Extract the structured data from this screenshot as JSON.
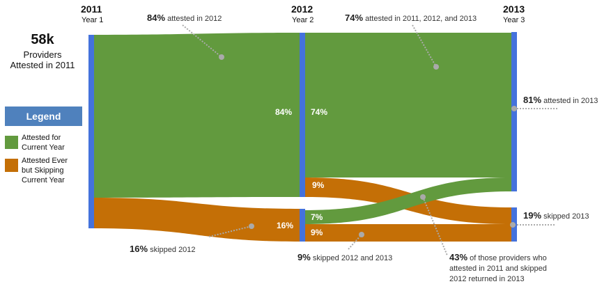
{
  "colors": {
    "attested": "#629a3e",
    "skipping": "#c46f06",
    "node": "#4472dc",
    "legend_header": "#4f81bd"
  },
  "years": [
    {
      "year": "2011",
      "label": "Year 1"
    },
    {
      "year": "2012",
      "label": "Year 2"
    },
    {
      "year": "2013",
      "label": "Year 3"
    }
  ],
  "summary": {
    "count": "58k",
    "line1": "Providers",
    "line2": "Attested in 2011"
  },
  "legend": {
    "title": "Legend",
    "items": [
      {
        "label1": "Attested for",
        "label2": "Current Year"
      },
      {
        "label1": "Attested Ever",
        "label2": "but Skipping",
        "label3": "Current Year"
      }
    ]
  },
  "flows": [
    {
      "from": "2011",
      "to": "2012 attested",
      "value": 84,
      "label": "84%"
    },
    {
      "from": "2011",
      "to": "2012 skipped",
      "value": 16,
      "label": "16%"
    },
    {
      "from": "2012 attested",
      "to": "2013 attested",
      "value": 74,
      "label": "74%"
    },
    {
      "from": "2012 attested",
      "to": "2013 skipped",
      "value": 9,
      "label": "9%"
    },
    {
      "from": "2012 skipped",
      "to": "2013 attested",
      "value": 7,
      "label": "7%"
    },
    {
      "from": "2012 skipped",
      "to": "2013 skipped",
      "value": 9,
      "label": "9%"
    }
  ],
  "annotations": {
    "a84": {
      "pct": "84%",
      "text": "attested in 2012"
    },
    "a74": {
      "pct": "74%",
      "text": "attested  in 2011, 2012, and 2013"
    },
    "a81": {
      "pct": "81%",
      "text": "attested in  2013"
    },
    "a19": {
      "pct": "19%",
      "text": "skipped 2013"
    },
    "a16": {
      "pct": "16%",
      "text": "skipped 2012"
    },
    "a9": {
      "pct": "9%",
      "text": "skipped 2012 and 2013"
    },
    "a43": {
      "pct": "43%",
      "text1": "of those providers who",
      "text2": "attested in 2011 and skipped",
      "text3": "2012 returned in 2013"
    }
  }
}
